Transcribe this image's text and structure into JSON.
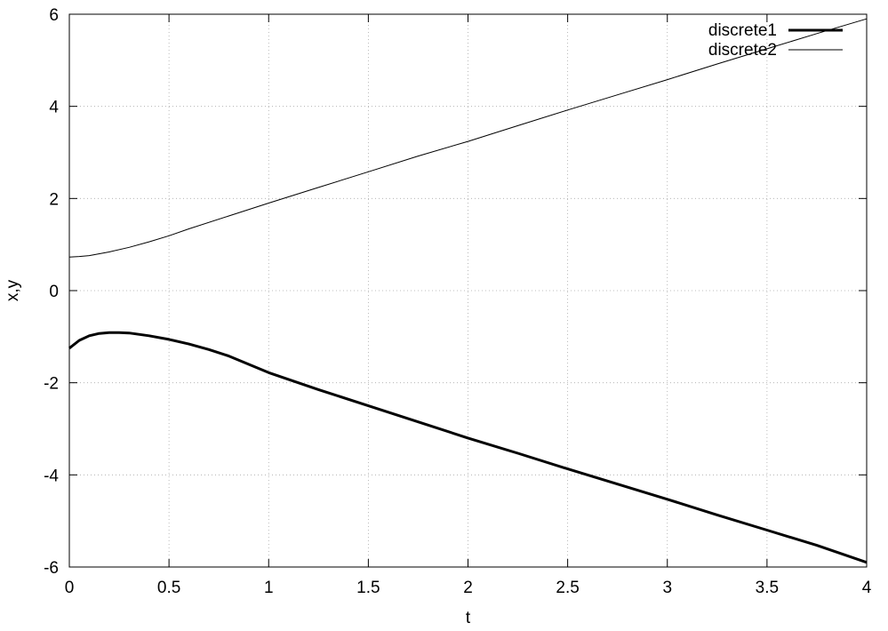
{
  "chart_data": {
    "type": "line",
    "xlabel": "t",
    "ylabel": "x,y",
    "xlim": [
      0,
      4
    ],
    "ylim": [
      -6,
      6
    ],
    "x_ticks": [
      0,
      0.5,
      1,
      1.5,
      2,
      2.5,
      3,
      3.5,
      4
    ],
    "x_tick_labels": [
      "0",
      "0.5",
      "1",
      "1.5",
      "2",
      "2.5",
      "3",
      "3.5",
      "4"
    ],
    "y_ticks": [
      -6,
      -4,
      -2,
      0,
      2,
      4,
      6
    ],
    "y_tick_labels": [
      "-6",
      "-4",
      "-2",
      "0",
      "2",
      "4",
      "6"
    ],
    "grid": true,
    "legend_position": "top-right",
    "series": [
      {
        "name": "discrete1",
        "style": "thick",
        "color": "#000000",
        "x": [
          0,
          0.05,
          0.1,
          0.15,
          0.2,
          0.25,
          0.3,
          0.4,
          0.5,
          0.6,
          0.7,
          0.8,
          1.0,
          1.25,
          1.5,
          1.75,
          2.0,
          2.25,
          2.5,
          2.75,
          3.0,
          3.25,
          3.5,
          3.75,
          4.0
        ],
        "y": [
          -1.25,
          -1.08,
          -0.98,
          -0.93,
          -0.91,
          -0.91,
          -0.92,
          -0.98,
          -1.06,
          -1.16,
          -1.28,
          -1.42,
          -1.78,
          -2.15,
          -2.5,
          -2.85,
          -3.2,
          -3.53,
          -3.87,
          -4.2,
          -4.53,
          -4.87,
          -5.2,
          -5.53,
          -5.9
        ]
      },
      {
        "name": "discrete2",
        "style": "thin",
        "color": "#000000",
        "x": [
          0,
          0.05,
          0.1,
          0.2,
          0.3,
          0.4,
          0.5,
          0.6,
          0.8,
          1.0,
          1.25,
          1.5,
          1.75,
          2.0,
          2.25,
          2.5,
          2.75,
          3.0,
          3.25,
          3.5,
          3.75,
          4.0
        ],
        "y": [
          0.73,
          0.74,
          0.76,
          0.84,
          0.94,
          1.06,
          1.19,
          1.34,
          1.62,
          1.9,
          2.24,
          2.58,
          2.92,
          3.24,
          3.58,
          3.92,
          4.25,
          4.58,
          4.92,
          5.25,
          5.58,
          5.9
        ]
      }
    ]
  }
}
